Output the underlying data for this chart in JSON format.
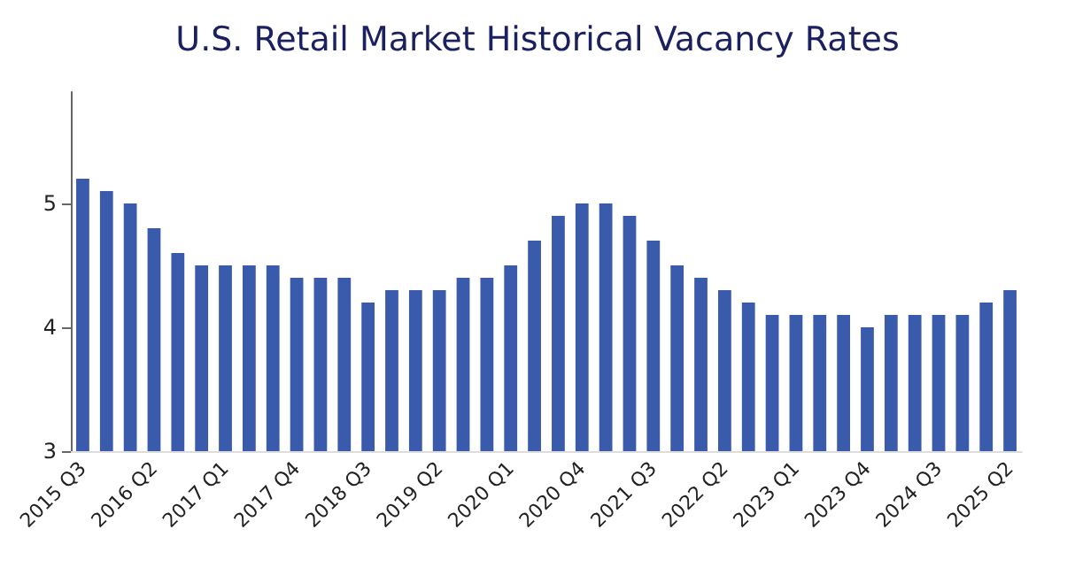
{
  "chart_data": {
    "type": "bar",
    "title": "U.S. Retail Market Historical Vacancy Rates",
    "categories": [
      "2015 Q3",
      null,
      null,
      "2016 Q2",
      null,
      null,
      "2017 Q1",
      null,
      null,
      "2017 Q4",
      null,
      null,
      "2018 Q3",
      null,
      null,
      "2019 Q2",
      null,
      null,
      "2020 Q1",
      null,
      null,
      "2020 Q4",
      null,
      null,
      "2021 Q3",
      null,
      null,
      "2022 Q2",
      null,
      null,
      "2023 Q1",
      null,
      null,
      "2023 Q4",
      null,
      null,
      "2024 Q3",
      null,
      null,
      "2025 Q2"
    ],
    "values": [
      5.2,
      5.1,
      5.0,
      4.8,
      4.6,
      4.5,
      4.5,
      4.5,
      4.5,
      4.4,
      4.4,
      4.4,
      4.2,
      4.3,
      4.3,
      4.3,
      4.4,
      4.4,
      4.5,
      4.7,
      4.9,
      5.0,
      5.0,
      4.9,
      4.7,
      4.5,
      4.4,
      4.3,
      4.2,
      4.1,
      4.1,
      4.1,
      4.1,
      4.0,
      4.1,
      4.1,
      4.1,
      4.1,
      4.2,
      4.3
    ],
    "color": "#3a5aab",
    "ylim": [
      3,
      5.9
    ],
    "yticks": [
      3,
      4,
      5
    ],
    "grid": false
  }
}
